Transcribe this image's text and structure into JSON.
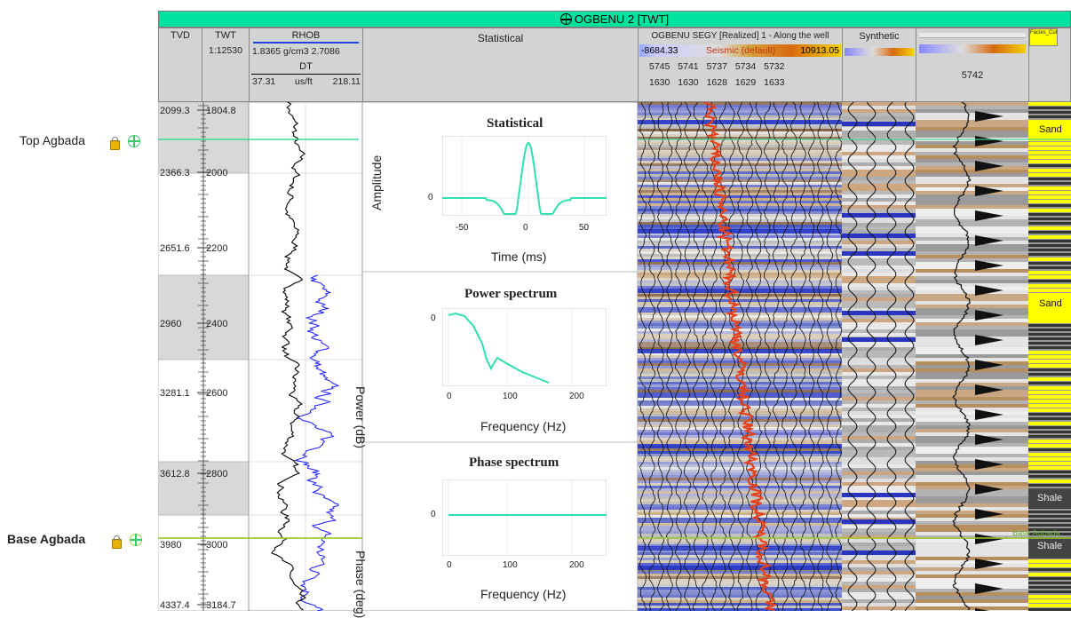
{
  "window": {
    "title": "OGBENU 2 [TWT]"
  },
  "horizons": {
    "top": {
      "label": "Top Agbada",
      "color": "#40d890"
    },
    "base": {
      "label": "Base Agbada",
      "color": "#9ccc30"
    }
  },
  "header": {
    "tvd": {
      "label": "TVD"
    },
    "twt": {
      "label": "TWT",
      "scale": "1:12530"
    },
    "logs": {
      "rhob": {
        "label": "RHOB",
        "min": "1.8365",
        "unit": "g/cm3",
        "max": "2.7086"
      },
      "dt": {
        "label": "DT",
        "min": "37.31",
        "unit": "us/ft",
        "max": "218.11"
      }
    },
    "statistical": {
      "label": "Statistical"
    },
    "seismic": {
      "label": "OGBENU SEGY [Realized] 1 - Along the well",
      "min": "-8684.33",
      "palette": "Seismic (default)",
      "max": "10913.05",
      "traces_top": [
        "5745",
        "5741",
        "5737",
        "5734",
        "5732"
      ],
      "traces_bottom": [
        "1630",
        "1630",
        "1628",
        "1629",
        "1633"
      ]
    },
    "synthetic": {
      "label": "Synthetic"
    },
    "seismic2": {
      "trace": "5742"
    },
    "facies": {
      "label": "Facies_Cutoff"
    }
  },
  "depth_ticks": [
    {
      "tvd": "2099.3",
      "twt": "1804.8"
    },
    {
      "tvd": "2366.3",
      "twt": "2000"
    },
    {
      "tvd": "2651.6",
      "twt": "2200"
    },
    {
      "tvd": "2960",
      "twt": "2400"
    },
    {
      "tvd": "3281.1",
      "twt": "2600"
    },
    {
      "tvd": "3612.8",
      "twt": "2800"
    },
    {
      "tvd": "3980",
      "twt": "3000"
    },
    {
      "tvd": "4337.4",
      "twt": "3184.7"
    }
  ],
  "wavelet_plots": {
    "statistical": {
      "title": "Statistical",
      "ylabel": "Amplitude",
      "xlabel": "Time (ms)",
      "yticks": [
        "0"
      ],
      "xticks": [
        "-50",
        "0",
        "50"
      ]
    },
    "power": {
      "title": "Power spectrum",
      "ylabel": "Power (dB)",
      "xlabel": "Frequency (Hz)",
      "yticks": [
        "0"
      ],
      "xticks": [
        "0",
        "100",
        "200"
      ]
    },
    "phase": {
      "title": "Phase spectrum",
      "ylabel": "Phase (deg)",
      "xlabel": "Frequency (Hz)",
      "yticks": [
        "0"
      ],
      "xticks": [
        "0",
        "100",
        "200"
      ]
    }
  },
  "facies_labels": {
    "sand1": "Sand",
    "sand2": "Sand",
    "shale1": "Shale",
    "shale2": "Shale",
    "base": "Base Agbada"
  },
  "colors": {
    "title_bar": "#00e3a0",
    "curve_line": "#30e0b0",
    "rhob": "#000000",
    "dt": "#1a1aff",
    "facies_yellow": "#ffff00"
  }
}
